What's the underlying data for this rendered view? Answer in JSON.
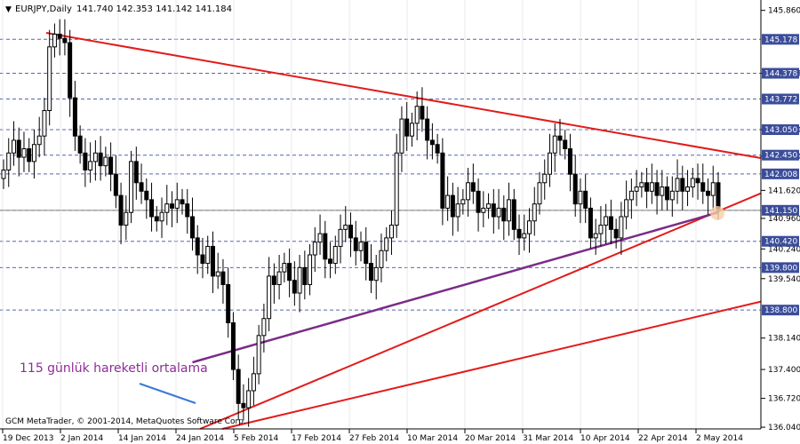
{
  "chart_data": {
    "type": "candlestick",
    "title": "EURJPY,Daily",
    "ohlc_header": "141.740 142.353 141.142 141.184",
    "footer": "GCM MetaTrader, © 2001-2014, MetaQuotes Software Corp.",
    "annotation": "115 günlük hareketli ortalama",
    "ylim": [
      136.0,
      146.0
    ],
    "y_ticks": [
      136.04,
      136.72,
      137.4,
      138.14,
      139.54,
      140.24,
      140.96,
      141.62,
      142.42,
      143.05,
      144.378,
      145.86
    ],
    "y_ticks_labels": [
      "136.040",
      "136.720",
      "137.400",
      "138.140",
      "139.540",
      "140.240",
      "140.960",
      "141.620",
      "142.420",
      "143.050",
      "144.378",
      "145.860"
    ],
    "hlines": [
      {
        "value": 145.178,
        "label": "145.178"
      },
      {
        "value": 144.378,
        "label": "144.378"
      },
      {
        "value": 143.772,
        "label": "143.772"
      },
      {
        "value": 143.05,
        "label": "143.050"
      },
      {
        "value": 142.45,
        "label": "142.450"
      },
      {
        "value": 142.008,
        "label": "142.008"
      },
      {
        "value": 141.15,
        "label": "141.150"
      },
      {
        "value": 140.42,
        "label": "140.420"
      },
      {
        "value": 139.8,
        "label": "139.800"
      },
      {
        "value": 138.8,
        "label": "138.800"
      }
    ],
    "x_labels": [
      "19 Dec 2013",
      "2 Jan 2014",
      "14 Jan 2014",
      "24 Jan 2014",
      "5 Feb 2014",
      "17 Feb 2014",
      "27 Feb 2014",
      "10 Mar 2014",
      "20 Mar 2014",
      "31 Mar 2014",
      "10 Apr 2014",
      "22 Apr 2014",
      "2 May 2014"
    ],
    "closes": [
      142.1,
      142.5,
      142.8,
      142.4,
      142.6,
      142.3,
      142.7,
      142.9,
      143.5,
      145.0,
      145.3,
      145.2,
      145.1,
      143.8,
      142.9,
      142.5,
      142.1,
      142.3,
      142.5,
      142.2,
      142.4,
      142.0,
      141.5,
      140.8,
      141.1,
      142.3,
      141.8,
      141.6,
      141.4,
      141.0,
      140.9,
      141.1,
      141.3,
      141.2,
      141.4,
      141.3,
      141.0,
      140.5,
      140.1,
      139.9,
      140.3,
      139.6,
      139.7,
      139.4,
      138.5,
      137.4,
      136.6,
      136.5,
      136.9,
      137.3,
      138.2,
      138.6,
      139.6,
      139.4,
      139.7,
      139.9,
      139.5,
      139.2,
      139.8,
      139.4,
      140.1,
      140.4,
      140.6,
      140.0,
      139.9,
      140.3,
      140.7,
      140.8,
      140.5,
      140.2,
      140.4,
      139.9,
      139.5,
      139.8,
      140.2,
      140.5,
      140.8,
      142.5,
      143.3,
      142.9,
      143.2,
      143.6,
      143.3,
      142.8,
      142.7,
      142.5,
      141.2,
      141.5,
      141.0,
      141.3,
      141.4,
      141.8,
      141.6,
      141.1,
      141.2,
      141.3,
      141.0,
      141.2,
      140.9,
      141.4,
      140.7,
      140.5,
      140.6,
      140.9,
      141.3,
      141.8,
      142.0,
      142.5,
      142.9,
      142.8,
      142.6,
      142.0,
      141.3,
      141.6,
      141.2,
      140.5,
      140.6,
      140.8,
      141.0,
      140.7,
      140.5,
      141.0,
      141.4,
      141.6,
      141.7,
      141.8,
      141.6,
      141.8,
      141.5,
      141.7,
      141.4,
      141.6,
      141.9,
      141.6,
      141.7,
      141.9,
      141.8,
      141.6,
      141.5,
      141.8,
      141.184
    ],
    "ma_label": "115 günlük hareketli ortalama"
  }
}
